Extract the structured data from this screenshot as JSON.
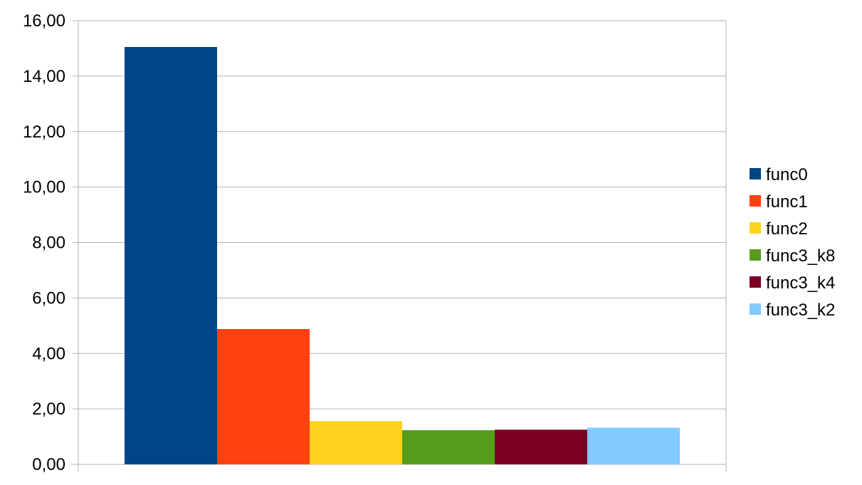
{
  "chart_data": {
    "type": "bar",
    "title": "",
    "xlabel": "",
    "ylabel": "",
    "ylim": [
      0,
      16
    ],
    "yticks": [
      "0,00",
      "2,00",
      "4,00",
      "6,00",
      "8,00",
      "10,00",
      "12,00",
      "14,00",
      "16,00"
    ],
    "grid": true,
    "legend_position": "right",
    "series": [
      {
        "name": "func0",
        "value": 15.05,
        "color": "#004586"
      },
      {
        "name": "func1",
        "value": 4.88,
        "color": "#ff420e"
      },
      {
        "name": "func2",
        "value": 1.56,
        "color": "#ffd320"
      },
      {
        "name": "func3_k8",
        "value": 1.23,
        "color": "#579d1c"
      },
      {
        "name": "func3_k4",
        "value": 1.25,
        "color": "#7e0021"
      },
      {
        "name": "func3_k2",
        "value": 1.32,
        "color": "#83caff"
      }
    ]
  }
}
